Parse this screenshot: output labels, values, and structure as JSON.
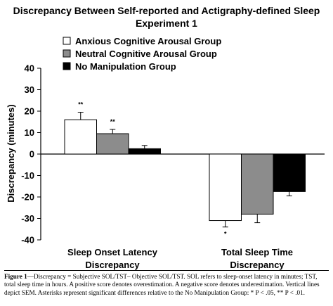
{
  "chart_data": {
    "type": "bar",
    "title": "Discrepancy Between Self-reported and Actigraphy-defined Sleep Experiment 1",
    "ylabel": "Discrepancy (minutes)",
    "xlabel": "",
    "ylim": [
      -40,
      40
    ],
    "yticks": [
      40,
      30,
      20,
      10,
      0,
      -10,
      -20,
      -30,
      -40
    ],
    "categories": [
      "Sleep Onset Latency\nDiscrepancy",
      "Total Sleep Time\nDiscrepancy"
    ],
    "series": [
      {
        "name": "Anxious Cognitive Arousal Group",
        "color": "#ffffff",
        "values": [
          16,
          -31
        ],
        "errors": [
          3.5,
          3
        ],
        "sig": [
          "**",
          "*"
        ]
      },
      {
        "name": "Neutral Cognitive Arousal Group",
        "color": "#8c8c8c",
        "values": [
          9.5,
          -28
        ],
        "errors": [
          2,
          4
        ],
        "sig": [
          "**",
          ""
        ]
      },
      {
        "name": "No Manipulation Group",
        "color": "#000000",
        "values": [
          2.5,
          -17.5
        ],
        "errors": [
          1.5,
          2
        ],
        "sig": [
          "",
          ""
        ]
      }
    ],
    "legend_position": "top-left",
    "grid": false
  },
  "caption": {
    "lead": "Figure 1",
    "text": "—Discrepancy = Subjective SOL/TST– Objective SOL/TST. SOL refers to sleep-onset latency in minutes; TST, total sleep time in hours. A positive score denotes overestimation. A negative score denotes underestimation. Vertical lines depict SEM. Asterisks represent significant differences relative to the No Manipulation Group: * P < .05, ** P < .01."
  }
}
